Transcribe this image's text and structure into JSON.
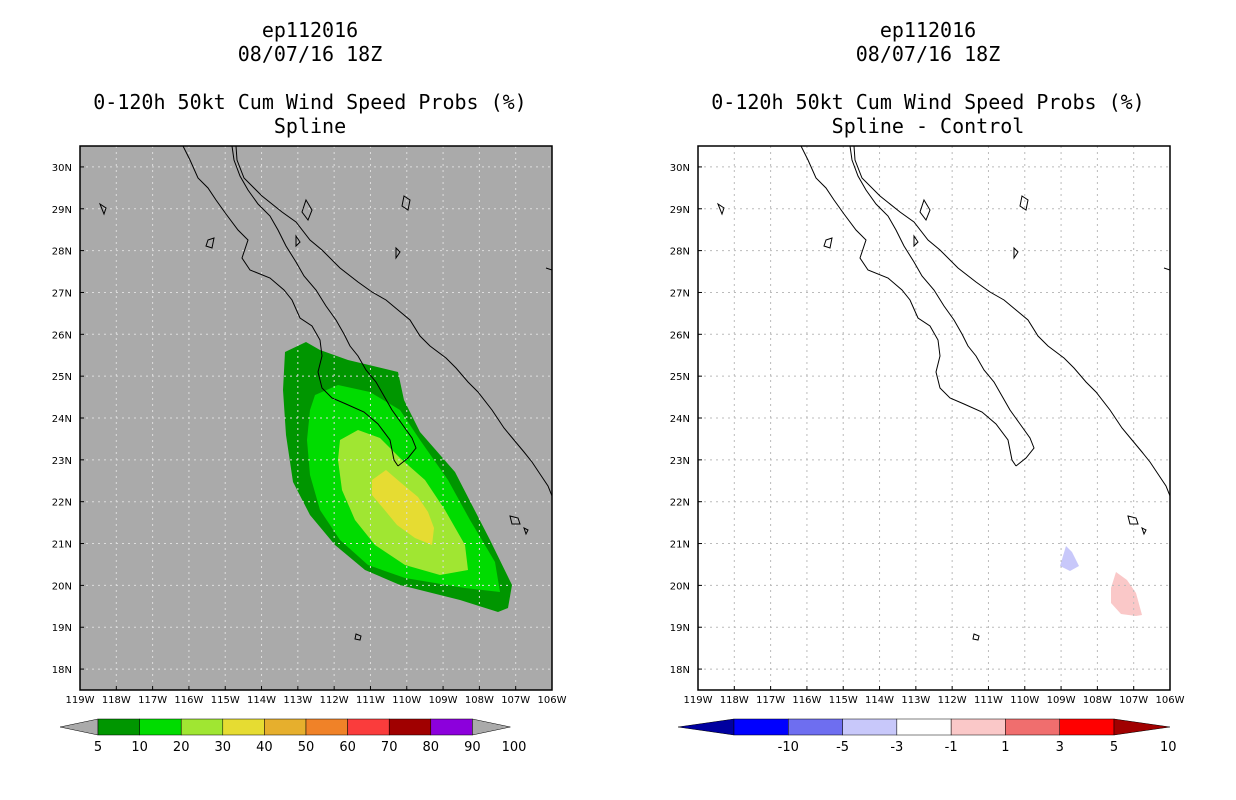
{
  "left_panel": {
    "title_lines": [
      "ep112016",
      "08/07/16 18Z",
      "",
      "0-120h 50kt Cum Wind Speed Probs (%)",
      "Spline"
    ],
    "background_color": "#aaaaaa",
    "lon_labels": [
      "119W",
      "118W",
      "117W",
      "116W",
      "115W",
      "114W",
      "113W",
      "112W",
      "111W",
      "110W",
      "109W",
      "108W",
      "107W",
      "106W"
    ],
    "lat_labels": [
      "30N",
      "29N",
      "28N",
      "27N",
      "26N",
      "25N",
      "24N",
      "23N",
      "22N",
      "21N",
      "20N",
      "19N",
      "18N"
    ],
    "colorbar": {
      "labels": [
        "5",
        "10",
        "20",
        "30",
        "40",
        "50",
        "60",
        "70",
        "80",
        "90",
        "100"
      ],
      "colors": [
        "#009600",
        "#00dc00",
        "#a0e632",
        "#e6dc32",
        "#e6af2d",
        "#f08228",
        "#fa3c3c",
        "#a00000",
        "#8c00dc",
        "#aaaaaa"
      ],
      "end_color": "#aaaaaa"
    }
  },
  "right_panel": {
    "title_lines": [
      "ep112016",
      "08/07/16 18Z",
      "",
      "0-120h 50kt Cum Wind Speed Probs (%)",
      "Spline - Control"
    ],
    "background_color": "#ffffff",
    "lon_labels": [
      "119W",
      "118W",
      "117W",
      "116W",
      "115W",
      "114W",
      "113W",
      "112W",
      "111W",
      "110W",
      "109W",
      "108W",
      "107W",
      "106W"
    ],
    "lat_labels": [
      "30N",
      "29N",
      "28N",
      "27N",
      "26N",
      "25N",
      "24N",
      "23N",
      "22N",
      "21N",
      "20N",
      "19N",
      "18N"
    ],
    "colorbar": {
      "labels": [
        "-10",
        "-5",
        "-3",
        "-1",
        "1",
        "3",
        "5",
        "10"
      ],
      "colors": [
        "#0000a0",
        "#0000ff",
        "#6e6ef0",
        "#c8c8fa",
        "#ffffff",
        "#fac8c8",
        "#f06e6e",
        "#ff0000",
        "#a00000"
      ]
    }
  },
  "map_extent": {
    "lon_min": -119,
    "lon_max": -106,
    "lat_min": 17.5,
    "lat_max": 30.5
  },
  "contour_colors": {
    "p5": "#009600",
    "p10": "#00dc00",
    "p20": "#a0e632",
    "p30": "#e6dc32",
    "neg_diff": "#c8c8fa",
    "pos_diff": "#fac8c8"
  }
}
